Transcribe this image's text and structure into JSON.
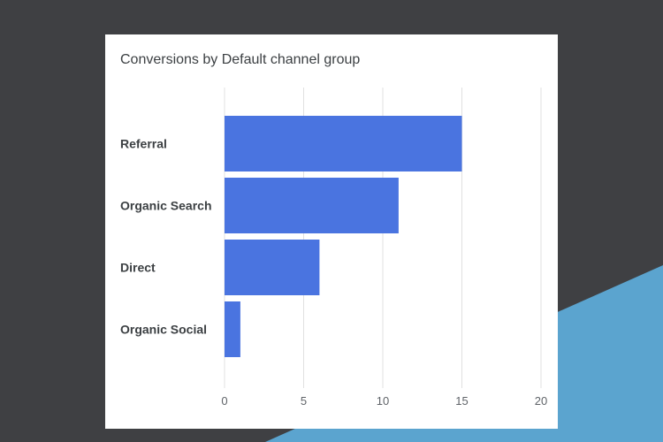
{
  "colors": {
    "background": "#3f4043",
    "accent": "#5ba4cf",
    "card": "#ffffff",
    "bar": "#4a74e0",
    "grid": "#e0e0e0"
  },
  "chart_data": {
    "type": "bar",
    "orientation": "horizontal",
    "title": "Conversions by Default channel group",
    "categories": [
      "Referral",
      "Organic Search",
      "Direct",
      "Organic Social"
    ],
    "values": [
      15,
      11,
      6,
      1
    ],
    "xlabel": "",
    "ylabel": "",
    "xlim": [
      0,
      20
    ],
    "ticks": [
      "0",
      "5",
      "10",
      "15",
      "20"
    ],
    "grid": true,
    "legend": "none"
  }
}
